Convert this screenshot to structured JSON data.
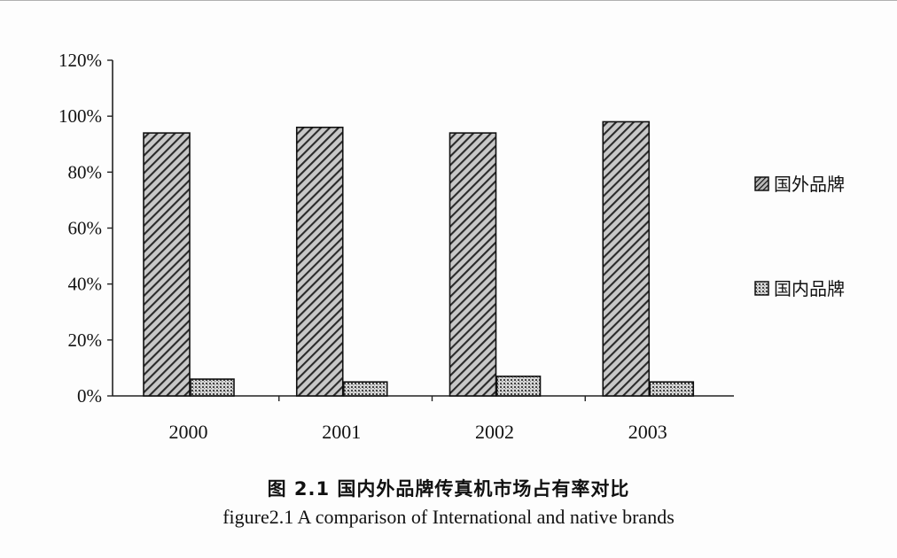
{
  "figure": {
    "caption_cn": "图 2.1  国内外品牌传真机市场占有率对比",
    "caption_en": "figure2.1 A comparison of International and native brands"
  },
  "chart_data": {
    "type": "bar",
    "categories": [
      "2000",
      "2001",
      "2002",
      "2003"
    ],
    "series": [
      {
        "name": "国外品牌",
        "values": [
          94,
          96,
          94,
          98
        ],
        "pattern": "diagonal-hatch",
        "color": "#3a3a3a"
      },
      {
        "name": "国内品牌",
        "values": [
          6,
          5,
          7,
          5
        ],
        "pattern": "dotted",
        "color": "#7a7a7a"
      }
    ],
    "ylim": [
      0,
      120
    ],
    "yticks": [
      "0%",
      "20%",
      "40%",
      "60%",
      "80%",
      "100%",
      "120%"
    ],
    "ytick_values": [
      0,
      20,
      40,
      60,
      80,
      100,
      120
    ],
    "xlabel": "",
    "ylabel": "",
    "legend_position": "right",
    "grid": false
  }
}
